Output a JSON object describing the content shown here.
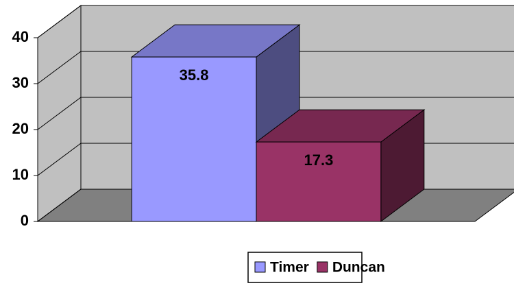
{
  "chart_data": {
    "type": "bar3d",
    "categories": [
      null
    ],
    "series": [
      {
        "name": "Timer",
        "color": "#9999ff",
        "values": [
          35.8
        ]
      },
      {
        "name": "Duncan",
        "color": "#993366",
        "values": [
          17.3
        ]
      }
    ],
    "ylim": [
      0,
      40
    ],
    "yticks": [
      0,
      10,
      20,
      30,
      40
    ],
    "grid": true,
    "legend": "bottom"
  }
}
